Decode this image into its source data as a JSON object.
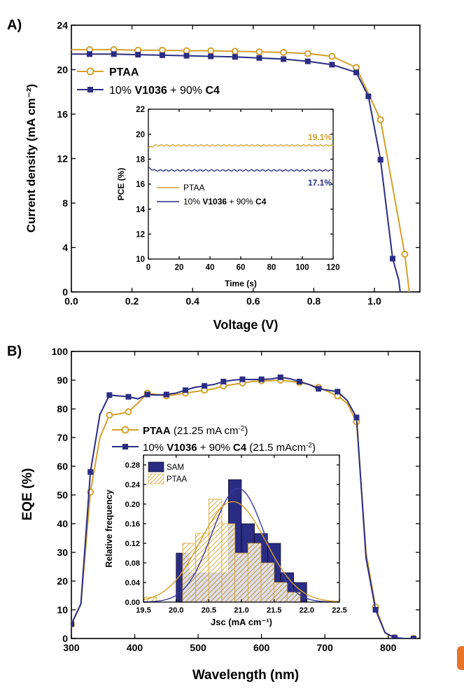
{
  "colors": {
    "ptaa": "#d4a02a",
    "sam": "#2b2c84",
    "axis": "#000000",
    "fit_sam": "#3a3a9a",
    "fit_ptaa": "#d4a02a"
  },
  "chart_data": [
    {
      "id": "A",
      "type": "line",
      "panel_label": "A)",
      "xlabel": "Voltage (V)",
      "ylabel": "Current density (mA cm⁻²)",
      "xlim": [
        0.0,
        1.15
      ],
      "ylim": [
        0,
        24
      ],
      "xticks": [
        "0.0",
        "0.2",
        "0.4",
        "0.6",
        "0.8",
        "1.0"
      ],
      "xtick_values": [
        0.0,
        0.2,
        0.4,
        0.6,
        0.8,
        1.0
      ],
      "yticks": [
        "0",
        "4",
        "8",
        "12",
        "16",
        "20",
        "24"
      ],
      "ytick_values": [
        0,
        4,
        8,
        12,
        16,
        20,
        24
      ],
      "legend_position": "top-left",
      "series": [
        {
          "name": "PTAA",
          "legend": "PTAA",
          "bold_parts": [
            "PTAA"
          ],
          "color_key": "ptaa",
          "marker": "circle-open",
          "x": [
            0.0,
            0.06,
            0.14,
            0.22,
            0.3,
            0.38,
            0.46,
            0.54,
            0.62,
            0.7,
            0.78,
            0.86,
            0.94,
            1.02,
            1.1,
            1.115
          ],
          "y": [
            21.8,
            21.8,
            21.8,
            21.75,
            21.75,
            21.7,
            21.7,
            21.65,
            21.6,
            21.55,
            21.45,
            21.2,
            20.2,
            15.5,
            3.4,
            0.0
          ],
          "marker_x": [
            0.06,
            0.14,
            0.22,
            0.3,
            0.38,
            0.46,
            0.54,
            0.62,
            0.7,
            0.78,
            0.86,
            0.94,
            1.02,
            1.1
          ]
        },
        {
          "name": "10% V1036 + 90% C4",
          "legend_parts": [
            {
              "t": "10% ",
              "b": false
            },
            {
              "t": "V1036",
              "b": true
            },
            {
              "t": " + 90% ",
              "b": false
            },
            {
              "t": "C4",
              "b": true
            }
          ],
          "color_key": "sam",
          "marker": "square-filled",
          "x": [
            0.0,
            0.06,
            0.14,
            0.22,
            0.3,
            0.38,
            0.46,
            0.54,
            0.62,
            0.7,
            0.78,
            0.86,
            0.94,
            0.98,
            1.02,
            1.06,
            1.08,
            1.085
          ],
          "y": [
            21.4,
            21.4,
            21.4,
            21.35,
            21.3,
            21.25,
            21.2,
            21.15,
            21.05,
            20.95,
            20.75,
            20.45,
            19.75,
            17.6,
            11.9,
            3.0,
            1.1,
            0.0
          ],
          "marker_x": [
            0.06,
            0.14,
            0.22,
            0.3,
            0.38,
            0.46,
            0.54,
            0.62,
            0.7,
            0.78,
            0.86,
            0.94,
            0.98,
            1.02,
            1.06
          ]
        }
      ]
    },
    {
      "id": "A-inset",
      "type": "line",
      "xlabel": "Time (s)",
      "ylabel": "PCE (%)",
      "xlim": [
        0,
        120
      ],
      "ylim": [
        10,
        22
      ],
      "xticks": [
        "0",
        "20",
        "40",
        "60",
        "80",
        "100",
        "120"
      ],
      "xtick_values": [
        0,
        20,
        40,
        60,
        80,
        100,
        120
      ],
      "yticks": [
        "10",
        "12",
        "14",
        "16",
        "18",
        "20",
        "22"
      ],
      "ytick_values": [
        10,
        12,
        14,
        16,
        18,
        20,
        22
      ],
      "legend_position": "center-left",
      "series": [
        {
          "name": "PTAA",
          "color_key": "ptaa",
          "x": [
            0,
            120
          ],
          "y": [
            19.1,
            19.1
          ],
          "start": 18.9,
          "end_label": "19.1%"
        },
        {
          "name": "10% V1036 + 90% C4",
          "legend_parts": [
            {
              "t": "10% ",
              "b": false
            },
            {
              "t": "V1036",
              "b": true
            },
            {
              "t": " + 90% ",
              "b": false
            },
            {
              "t": "C4",
              "b": true
            }
          ],
          "color_key": "sam",
          "x": [
            0,
            120
          ],
          "y": [
            17.1,
            17.1
          ],
          "start": 17.3,
          "end_label": "17.1%"
        }
      ]
    },
    {
      "id": "B",
      "type": "line",
      "panel_label": "B)",
      "xlabel": "Wavelength (nm)",
      "ylabel": "EQE (%)",
      "xlim": [
        300,
        850
      ],
      "ylim": [
        0,
        100
      ],
      "xticks": [
        "300",
        "400",
        "500",
        "600",
        "700",
        "800"
      ],
      "xtick_values": [
        300,
        400,
        500,
        600,
        700,
        800
      ],
      "yticks": [
        "0",
        "10",
        "20",
        "30",
        "40",
        "50",
        "60",
        "70",
        "80",
        "90",
        "100"
      ],
      "ytick_values": [
        0,
        10,
        20,
        30,
        40,
        50,
        60,
        70,
        80,
        90,
        100
      ],
      "legend_position": "center-left",
      "series": [
        {
          "name": "PTAA",
          "legend_parts": [
            {
              "t": "PTAA",
              "b": true
            },
            {
              "t": " (21.25 mA cm",
              "b": false
            },
            {
              "t": "-2",
              "sup": true
            },
            {
              "t": ")",
              "b": false
            }
          ],
          "color_key": "ptaa",
          "marker": "circle-open",
          "x": [
            300,
            315,
            330,
            345,
            360,
            375,
            390,
            405,
            420,
            435,
            450,
            465,
            480,
            495,
            510,
            525,
            540,
            555,
            570,
            585,
            600,
            615,
            630,
            645,
            660,
            675,
            690,
            705,
            720,
            735,
            750,
            765,
            780,
            795,
            810,
            825,
            840
          ],
          "y": [
            5,
            12,
            51,
            70,
            77.8,
            78.2,
            79,
            82,
            85.5,
            85,
            84.5,
            85,
            85.5,
            86,
            86.5,
            87,
            88,
            88.5,
            89,
            89.5,
            89.8,
            89.8,
            90,
            89.6,
            89.2,
            88.5,
            87.5,
            86,
            84.5,
            82,
            75.5,
            30,
            11,
            2,
            0.3,
            0,
            0
          ],
          "marker_x": [
            300,
            330,
            360,
            390,
            420,
            450,
            480,
            510,
            540,
            570,
            600,
            630,
            660,
            690,
            720,
            750,
            780,
            810,
            840
          ]
        },
        {
          "name": "10% V1036 + 90% C4",
          "legend_parts": [
            {
              "t": "10% ",
              "b": false
            },
            {
              "t": "V1036",
              "b": true
            },
            {
              "t": " + 90% ",
              "b": false
            },
            {
              "t": "C4",
              "b": true
            },
            {
              "t": " (21.5 mAcm",
              "b": false
            },
            {
              "t": "-2",
              "sup": true
            },
            {
              "t": ")",
              "b": false
            }
          ],
          "color_key": "sam",
          "marker": "square-filled",
          "x": [
            300,
            315,
            330,
            345,
            360,
            375,
            390,
            405,
            420,
            435,
            450,
            465,
            480,
            495,
            510,
            525,
            540,
            555,
            570,
            585,
            600,
            615,
            630,
            645,
            660,
            675,
            690,
            705,
            720,
            735,
            750,
            765,
            780,
            795,
            810,
            825,
            840
          ],
          "y": [
            5,
            12,
            58,
            78,
            84.8,
            84.5,
            84.2,
            83.5,
            85,
            84.8,
            85,
            85.5,
            86.5,
            87.5,
            88,
            88.5,
            89.5,
            90,
            90.3,
            90.2,
            90.3,
            90.4,
            91,
            90.5,
            89.5,
            88.5,
            87,
            86.5,
            86,
            83,
            77,
            28,
            10,
            2,
            0.3,
            0,
            0
          ],
          "marker_x": [
            300,
            330,
            360,
            390,
            420,
            450,
            480,
            510,
            540,
            570,
            600,
            630,
            660,
            690,
            720,
            750,
            780,
            810,
            840
          ]
        }
      ]
    },
    {
      "id": "B-inset",
      "type": "bar",
      "xlabel": "Jsc (mA cm⁻¹)",
      "ylabel": "Relative frequency",
      "xlim": [
        19.5,
        22.5
      ],
      "ylim": [
        0,
        0.3
      ],
      "xticks": [
        "19.5",
        "20.0",
        "20.5",
        "21.0",
        "21.5",
        "22.0",
        "22.5"
      ],
      "xtick_values": [
        19.5,
        20.0,
        20.5,
        21.0,
        21.5,
        22.0,
        22.5
      ],
      "yticks": [
        "0.00",
        "0.04",
        "0.08",
        "0.12",
        "0.16",
        "0.20",
        "0.24",
        "0.28"
      ],
      "ytick_values": [
        0,
        0.04,
        0.08,
        0.12,
        0.16,
        0.2,
        0.24,
        0.28
      ],
      "legend_position": "top-left",
      "bin_width": 0.2,
      "series": [
        {
          "name": "SAM",
          "color_key": "sam",
          "style": "solid",
          "bin_starts": [
            20.0,
            20.2,
            20.4,
            20.6,
            20.8,
            21.0,
            21.2,
            21.4,
            21.6,
            21.8
          ],
          "values": [
            0.1,
            0.06,
            0.06,
            0.06,
            0.25,
            0.16,
            0.14,
            0.12,
            0.06,
            0.04
          ],
          "fit_mean": 20.95,
          "fit_peak": 0.232
        },
        {
          "name": "PTAA",
          "color_key": "ptaa",
          "style": "hatched",
          "bin_starts": [
            19.5,
            19.7,
            19.9,
            20.1,
            20.3,
            20.5,
            20.7,
            20.9,
            21.1,
            21.3,
            21.5,
            21.7
          ],
          "values": [
            0.01,
            0.0,
            0.0,
            0.12,
            0.14,
            0.21,
            0.16,
            0.1,
            0.12,
            0.08,
            0.04,
            0.02
          ],
          "fit_mean": 20.87,
          "fit_peak": 0.205
        }
      ]
    }
  ]
}
